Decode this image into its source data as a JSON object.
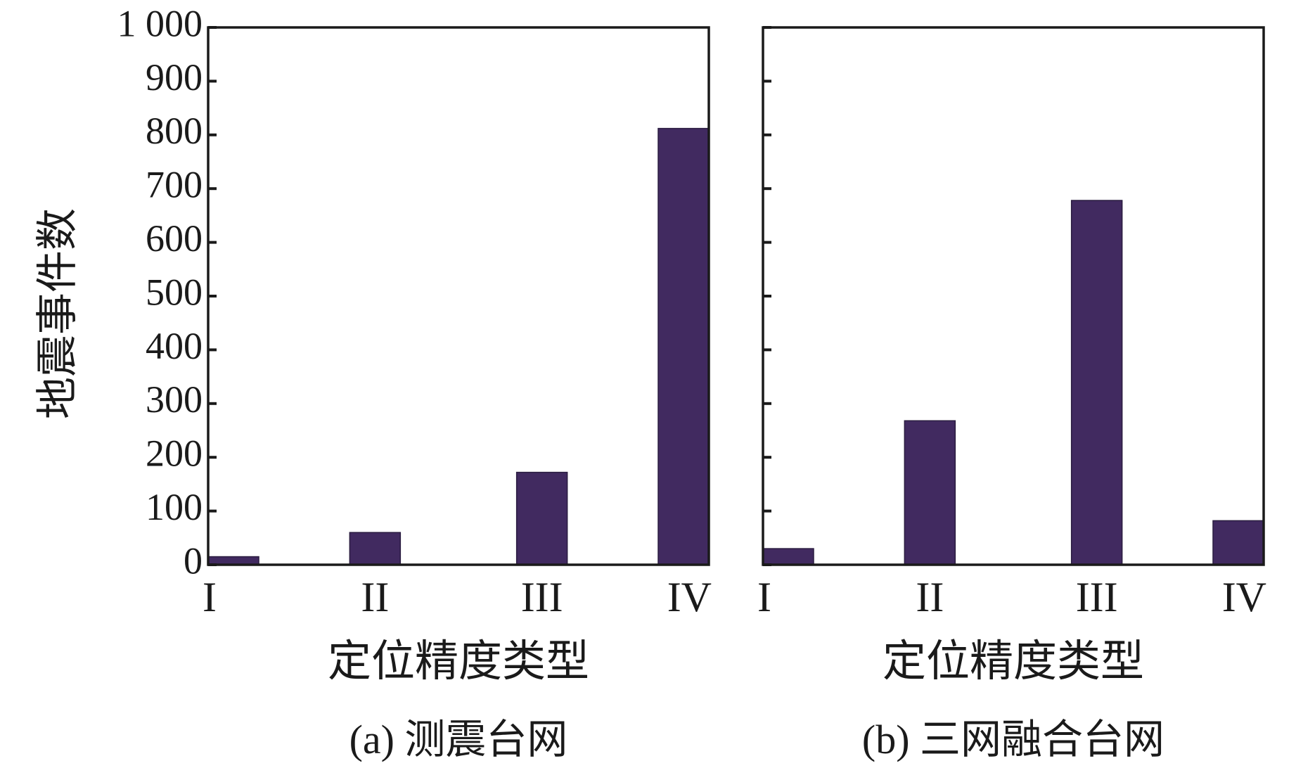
{
  "ylabel": "地震事件数",
  "ylim": [
    0,
    1000
  ],
  "yticks": [
    0,
    100,
    200,
    300,
    400,
    500,
    600,
    700,
    800,
    900,
    1000
  ],
  "ytick_labels": [
    "0",
    "100",
    "200",
    "300",
    "400",
    "500",
    "600",
    "700",
    "800",
    "900",
    "1 000"
  ],
  "bar_color": "#412a60",
  "chart_data": [
    {
      "type": "bar",
      "categories": [
        "I",
        "II",
        "III",
        "IV"
      ],
      "values": [
        15,
        60,
        172,
        812
      ],
      "xlabel": "定位精度类型",
      "ylabel": "地震事件数",
      "caption": "(a) 测震台网",
      "ylim": [
        0,
        1000
      ],
      "grid": false
    },
    {
      "type": "bar",
      "categories": [
        "I",
        "II",
        "III",
        "IV"
      ],
      "values": [
        30,
        268,
        678,
        82
      ],
      "xlabel": "定位精度类型",
      "caption": "(b) 三网融合台网",
      "ylim": [
        0,
        1000
      ],
      "grid": false
    }
  ]
}
